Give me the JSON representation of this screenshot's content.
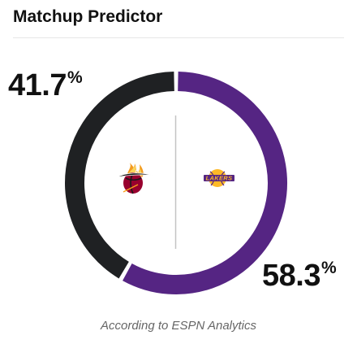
{
  "widget": {
    "title": "Matchup Predictor",
    "caption": "According to ESPN Analytics"
  },
  "teams": [
    {
      "name": "Miami Heat",
      "logo_icon": "heat-logo-icon",
      "percent": "41.7",
      "color": "#1f2123"
    },
    {
      "name": "Los Angeles Lakers",
      "logo_icon": "lakers-logo-icon",
      "percent": "58.3",
      "color": "#552583"
    }
  ],
  "percent_sign": "%",
  "logo_text": {
    "lakers": "LAKERS"
  },
  "chart_data": {
    "type": "pie",
    "categories": [
      "Miami Heat",
      "Los Angeles Lakers"
    ],
    "values": [
      41.7,
      58.3
    ],
    "colors": [
      "#1f2123",
      "#552583"
    ],
    "title": "Matchup Predictor"
  }
}
